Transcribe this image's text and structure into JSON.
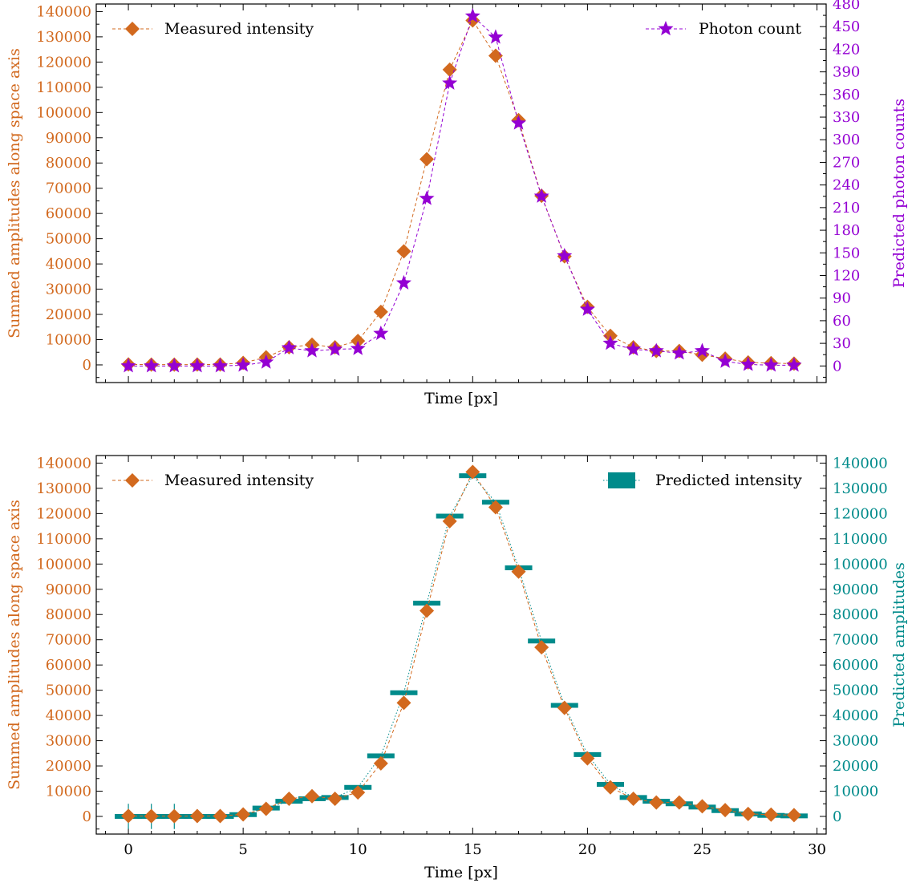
{
  "colors": {
    "measured": "#D2691E",
    "photon": "#9400D3",
    "predicted": "#008B8B",
    "axis": "#000000"
  },
  "chart_data": [
    {
      "type": "line",
      "xlabel": "Time [px]",
      "ylabel": "Summed amplitudes along space axis",
      "ylabel_right": "Predicted photon counts",
      "xlim": [
        -1.4,
        30.4
      ],
      "ylim": [
        -7000,
        143000
      ],
      "ylim_right": [
        -22,
        480
      ],
      "yticks": [
        0,
        10000,
        20000,
        30000,
        40000,
        50000,
        60000,
        70000,
        80000,
        90000,
        100000,
        110000,
        120000,
        130000,
        140000
      ],
      "yticks_right": [
        0,
        30,
        60,
        90,
        120,
        150,
        180,
        210,
        240,
        270,
        300,
        330,
        360,
        390,
        420,
        450,
        480
      ],
      "xticks": [
        0,
        5,
        10,
        15,
        20,
        25,
        30
      ],
      "show_xtick_labels": false,
      "legend": {
        "left": "top-left",
        "right": "top-right"
      },
      "series": [
        {
          "name": "Measured intensity",
          "axis": "left",
          "marker": "diamond",
          "x": [
            0,
            1,
            2,
            3,
            4,
            5,
            6,
            7,
            8,
            9,
            10,
            11,
            12,
            13,
            14,
            15,
            16,
            17,
            18,
            19,
            20,
            21,
            22,
            23,
            24,
            25,
            26,
            27,
            28,
            29
          ],
          "values": [
            200,
            100,
            100,
            150,
            150,
            800,
            3000,
            7000,
            8000,
            7000,
            9500,
            21000,
            45000,
            81500,
            117000,
            136500,
            122500,
            97000,
            67000,
            43000,
            23000,
            11500,
            7000,
            5500,
            5500,
            4000,
            2500,
            1000,
            700,
            500
          ]
        },
        {
          "name": "Photon count",
          "axis": "right",
          "marker": "star",
          "x": [
            0,
            1,
            2,
            3,
            4,
            5,
            6,
            7,
            8,
            9,
            10,
            11,
            12,
            13,
            14,
            15,
            16,
            17,
            18,
            19,
            20,
            21,
            22,
            23,
            24,
            25,
            26,
            27,
            28,
            29
          ],
          "values": [
            0,
            0,
            0,
            0,
            0,
            1,
            5,
            24,
            20,
            22,
            23,
            43,
            110,
            222,
            375,
            464,
            436,
            322,
            225,
            146,
            75,
            30,
            22,
            20,
            17,
            20,
            6,
            2,
            1,
            1
          ]
        }
      ]
    },
    {
      "type": "line",
      "xlabel": "Time [px]",
      "ylabel": "Summed amplitudes along space axis",
      "ylabel_right": "Predicted amplitudes",
      "xlim": [
        -1.4,
        30.4
      ],
      "ylim": [
        -7000,
        143000
      ],
      "ylim_right": [
        -7000,
        143000
      ],
      "yticks": [
        0,
        10000,
        20000,
        30000,
        40000,
        50000,
        60000,
        70000,
        80000,
        90000,
        100000,
        110000,
        120000,
        130000,
        140000
      ],
      "yticks_right": [
        0,
        10000,
        20000,
        30000,
        40000,
        50000,
        60000,
        70000,
        80000,
        90000,
        100000,
        110000,
        120000,
        130000,
        140000
      ],
      "xticks": [
        0,
        5,
        10,
        15,
        20,
        25,
        30
      ],
      "show_xtick_labels": true,
      "legend": {
        "left": "top-left",
        "right": "top-right"
      },
      "series": [
        {
          "name": "Measured intensity",
          "axis": "left",
          "marker": "diamond",
          "x": [
            0,
            1,
            2,
            3,
            4,
            5,
            6,
            7,
            8,
            9,
            10,
            11,
            12,
            13,
            14,
            15,
            16,
            17,
            18,
            19,
            20,
            21,
            22,
            23,
            24,
            25,
            26,
            27,
            28,
            29
          ],
          "values": [
            200,
            100,
            100,
            150,
            150,
            800,
            3000,
            7000,
            8000,
            7000,
            9500,
            21000,
            45000,
            81500,
            117000,
            136500,
            122500,
            97000,
            67000,
            43000,
            23000,
            11500,
            7000,
            5500,
            5500,
            4000,
            2500,
            1000,
            700,
            500
          ]
        },
        {
          "name": "Predicted intensity",
          "axis": "right",
          "marker": "bar",
          "x": [
            0,
            1,
            2,
            3,
            4,
            5,
            6,
            7,
            8,
            9,
            10,
            11,
            12,
            13,
            14,
            15,
            16,
            17,
            18,
            19,
            20,
            21,
            22,
            23,
            24,
            25,
            26,
            27,
            28,
            29
          ],
          "values": [
            0,
            0,
            0,
            0,
            0,
            700,
            3300,
            6000,
            7000,
            7500,
            11500,
            24000,
            49000,
            84500,
            119000,
            135000,
            124500,
            98500,
            69500,
            44000,
            24500,
            12700,
            7500,
            6000,
            5000,
            3700,
            2300,
            1000,
            400,
            200
          ],
          "errors": [
            5000,
            5000,
            5000,
            500,
            500,
            500,
            500,
            500,
            500,
            500,
            500,
            500,
            500,
            500,
            500,
            500,
            500,
            500,
            500,
            500,
            500,
            500,
            500,
            500,
            500,
            500,
            500,
            500,
            500,
            500
          ]
        }
      ]
    }
  ]
}
